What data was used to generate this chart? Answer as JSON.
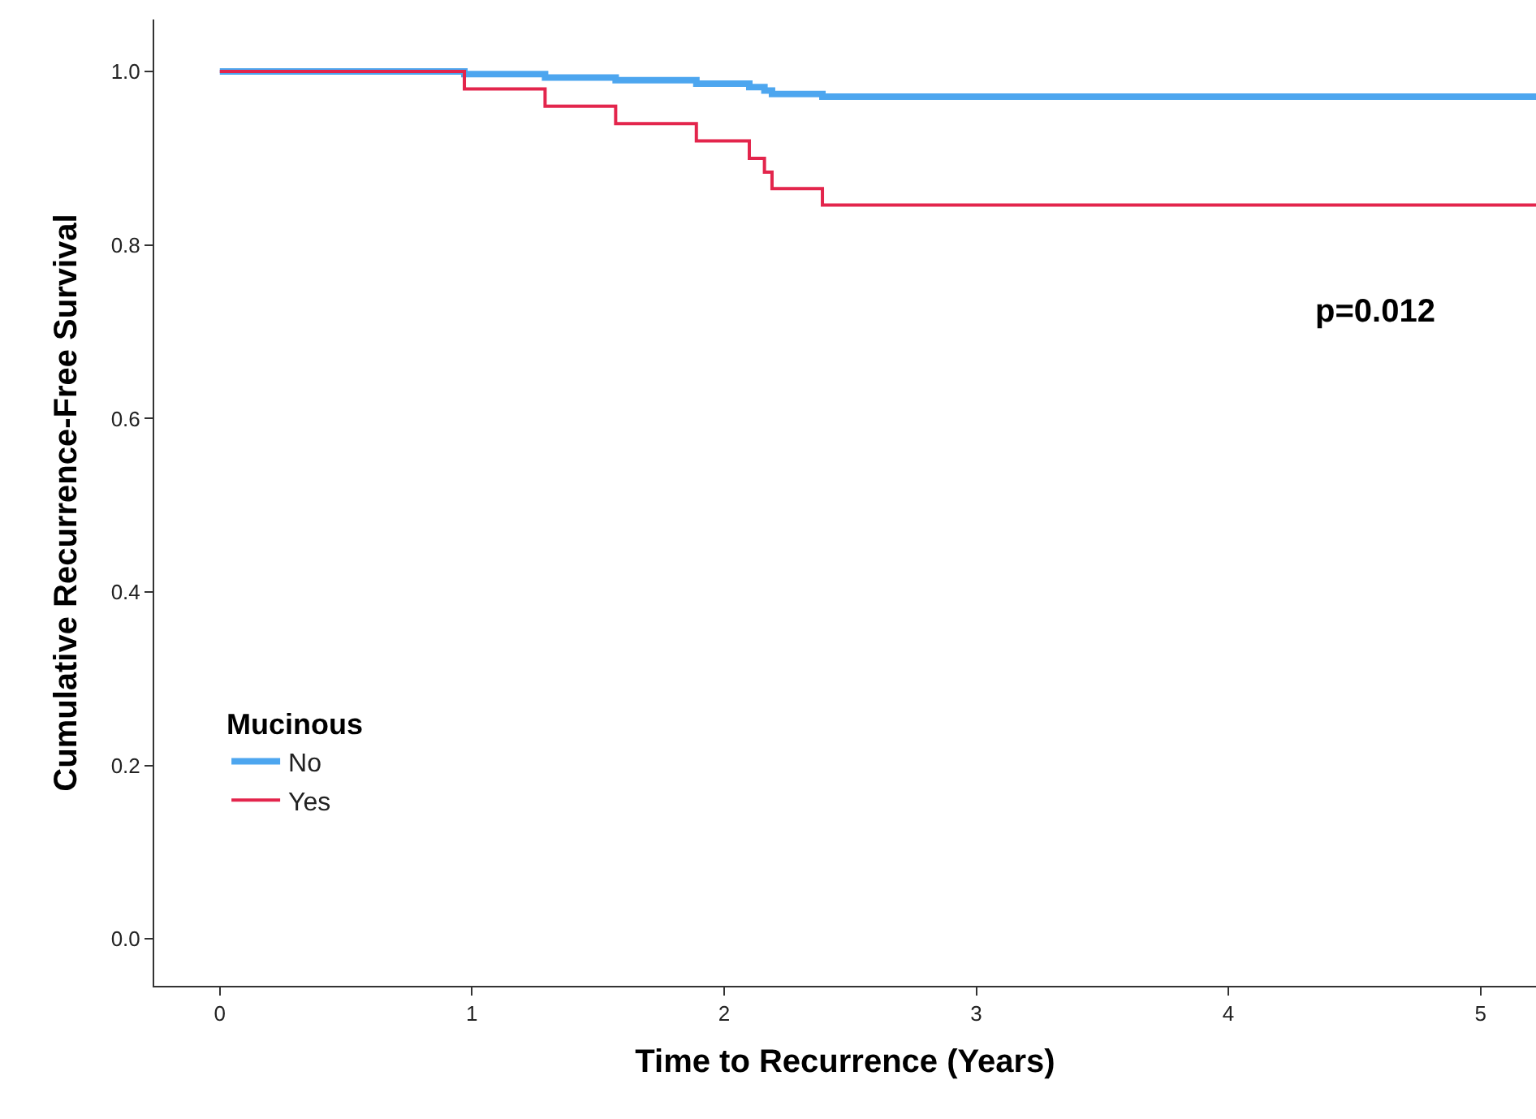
{
  "chart_data": {
    "type": "step",
    "xlabel": "Time to Recurrence (Years)",
    "ylabel": "Cumulative Recurrence-Free Survival",
    "legend_title": "Mucinous",
    "series": [
      {
        "name": "No",
        "color": "#4da6ef",
        "x": [
          0,
          0.97,
          1.29,
          1.57,
          1.89,
          2.1,
          2.16,
          2.19,
          2.39,
          5.22
        ],
        "values": [
          1.0,
          0.997,
          0.993,
          0.99,
          0.986,
          0.982,
          0.978,
          0.974,
          0.971,
          0.971
        ]
      },
      {
        "name": "Yes",
        "color": "#e3254c",
        "x": [
          0,
          0.97,
          1.29,
          1.57,
          1.89,
          2.1,
          2.16,
          2.19,
          2.39,
          5.22
        ],
        "values": [
          1.0,
          0.98,
          0.96,
          0.94,
          0.92,
          0.9,
          0.884,
          0.865,
          0.846,
          0.846
        ]
      }
    ],
    "xlim": [
      -0.26,
      5.22
    ],
    "ylim": [
      -0.054,
      1.06
    ],
    "xticks": [
      0,
      1,
      2,
      3,
      4,
      5
    ],
    "yticks": [
      {
        "value": 0,
        "label": "0.0"
      },
      {
        "value": 0.2,
        "label": "0.2"
      },
      {
        "value": 0.4,
        "label": "0.4"
      },
      {
        "value": 0.6,
        "label": "0.6"
      },
      {
        "value": 0.8,
        "label": "0.8"
      },
      {
        "value": 1,
        "label": "1.0"
      }
    ],
    "annotations": [
      "p=0.012"
    ],
    "legend": "bottom left",
    "line_style": "solid",
    "marker": "none"
  }
}
